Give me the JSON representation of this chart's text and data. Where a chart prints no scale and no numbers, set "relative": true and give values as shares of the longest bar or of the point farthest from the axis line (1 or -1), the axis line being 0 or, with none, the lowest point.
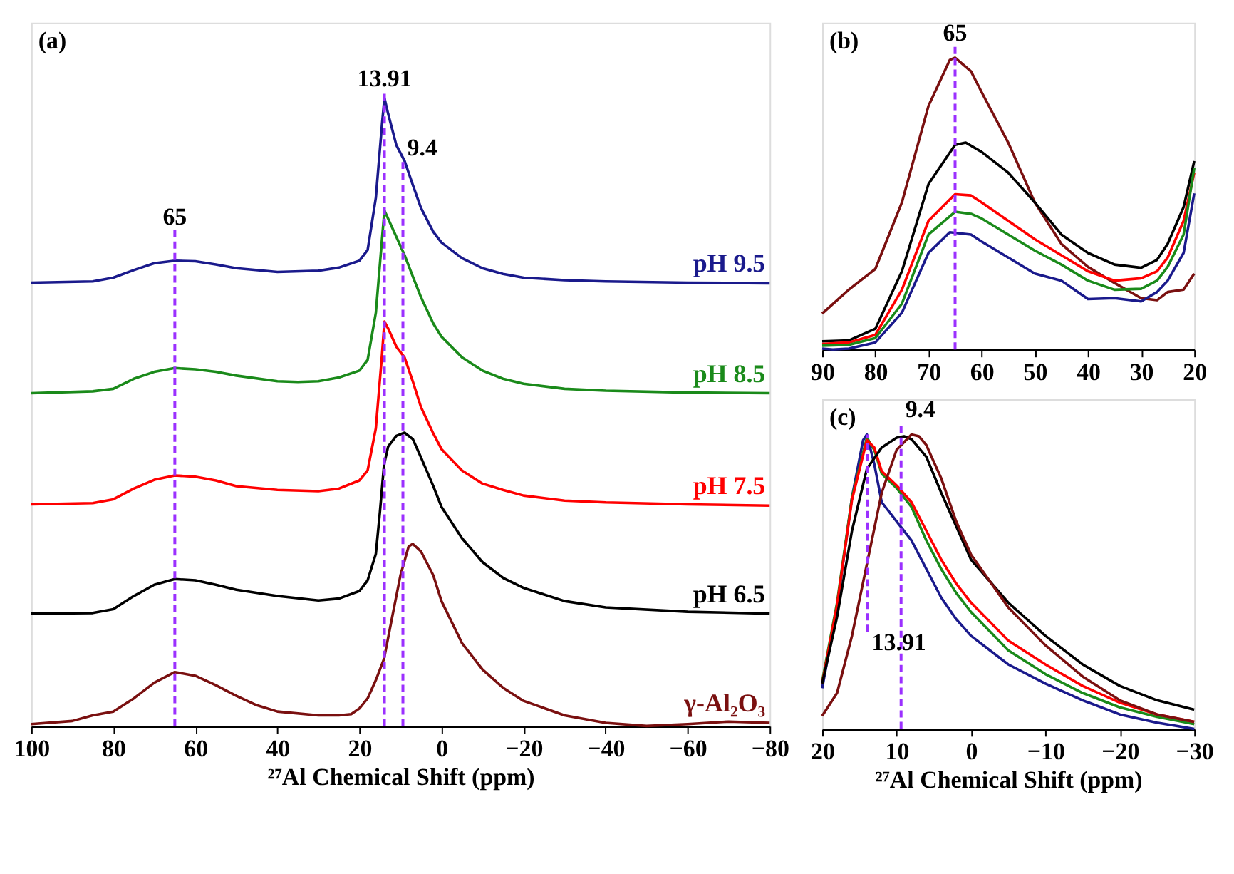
{
  "chart_data": [
    {
      "type": "line",
      "relative": true,
      "xlabel": "²⁷Al Chemical Shift (ppm)",
      "xlim": [
        100,
        -80
      ],
      "xticks": [
        100,
        80,
        60,
        40,
        20,
        0,
        -20,
        -40,
        -60,
        -80
      ],
      "line_style": "solid",
      "annotations": [
        "(a)",
        {
          "text": "65",
          "x": 65,
          "y": 0.79
        },
        {
          "text": "13.91",
          "x": 13.91,
          "y": 1.01
        },
        {
          "text": "9.4",
          "x": 9.4,
          "y": 0.9
        }
      ],
      "ref_lines": [
        {
          "axis": "x",
          "value": 65,
          "color": "#9b30ff",
          "line_style": "dashed"
        },
        {
          "axis": "x",
          "value": 13.91,
          "color": "#9b30ff",
          "line_style": "dashed"
        },
        {
          "axis": "x",
          "value": 9.4,
          "color": "#9b30ff",
          "line_style": "dashed"
        }
      ],
      "series": [
        {
          "name": "pH 9.5",
          "color": "#1a1a8c",
          "x": [
            100,
            85,
            80,
            75,
            70,
            65,
            60,
            55,
            50,
            40,
            30,
            25,
            20,
            18,
            16,
            14.5,
            13.9,
            13,
            11,
            9,
            7,
            5,
            2,
            0,
            -5,
            -10,
            -15,
            -20,
            -30,
            -40,
            -60,
            -80
          ],
          "values": [
            0.706,
            0.708,
            0.714,
            0.726,
            0.737,
            0.741,
            0.74,
            0.735,
            0.729,
            0.723,
            0.725,
            0.73,
            0.741,
            0.758,
            0.841,
            0.958,
            1,
            0.975,
            0.925,
            0.9,
            0.862,
            0.825,
            0.787,
            0.77,
            0.745,
            0.729,
            0.72,
            0.714,
            0.71,
            0.708,
            0.706,
            0.705
          ]
        },
        {
          "name": "pH 8.5",
          "color": "#1a8a1a",
          "x": [
            100,
            85,
            80,
            75,
            70,
            65,
            60,
            55,
            50,
            40,
            35,
            30,
            25,
            20,
            18,
            16,
            14.5,
            13.9,
            13,
            11,
            9,
            7,
            5,
            2,
            0,
            -5,
            -10,
            -15,
            -20,
            -30,
            -40,
            -60,
            -80
          ],
          "values": [
            0.53,
            0.533,
            0.537,
            0.553,
            0.564,
            0.57,
            0.568,
            0.564,
            0.558,
            0.549,
            0.548,
            0.549,
            0.555,
            0.566,
            0.583,
            0.658,
            0.775,
            0.821,
            0.808,
            0.779,
            0.75,
            0.716,
            0.683,
            0.641,
            0.62,
            0.587,
            0.566,
            0.553,
            0.545,
            0.537,
            0.534,
            0.531,
            0.53
          ]
        },
        {
          "name": "pH 7.5",
          "color": "#ff0000",
          "x": [
            100,
            85,
            80,
            75,
            70,
            65,
            60,
            55,
            50,
            40,
            30,
            25,
            20,
            18,
            16,
            14.5,
            13.9,
            13,
            11,
            9,
            7,
            5,
            2,
            0,
            -5,
            -10,
            -15,
            -20,
            -30,
            -40,
            -60,
            -80
          ],
          "values": [
            0.353,
            0.355,
            0.361,
            0.378,
            0.392,
            0.399,
            0.397,
            0.391,
            0.382,
            0.376,
            0.374,
            0.378,
            0.391,
            0.407,
            0.474,
            0.591,
            0.644,
            0.633,
            0.604,
            0.587,
            0.549,
            0.508,
            0.466,
            0.441,
            0.407,
            0.386,
            0.376,
            0.367,
            0.359,
            0.356,
            0.353,
            0.351
          ]
        },
        {
          "name": "pH 6.5",
          "color": "#000000",
          "x": [
            100,
            85,
            80,
            75,
            70,
            65,
            60,
            55,
            50,
            40,
            30,
            25,
            20,
            18,
            16,
            15,
            14,
            13,
            11,
            9,
            7,
            5,
            2,
            0,
            -5,
            -10,
            -15,
            -20,
            -30,
            -40,
            -60,
            -80
          ],
          "values": [
            0.179,
            0.18,
            0.186,
            0.207,
            0.225,
            0.234,
            0.232,
            0.225,
            0.217,
            0.207,
            0.2,
            0.203,
            0.215,
            0.232,
            0.274,
            0.341,
            0.416,
            0.445,
            0.462,
            0.467,
            0.457,
            0.428,
            0.382,
            0.349,
            0.299,
            0.261,
            0.236,
            0.22,
            0.199,
            0.189,
            0.182,
            0.179
          ]
        },
        {
          "name": "γ-Al₂O₃",
          "color": "#7a1010",
          "x": [
            100,
            90,
            85,
            80,
            75,
            70,
            65,
            60,
            55,
            50,
            45,
            40,
            30,
            25,
            22,
            20,
            18,
            16,
            14,
            12,
            10,
            8,
            7,
            5,
            2,
            0,
            -5,
            -10,
            -15,
            -20,
            -30,
            -40,
            -50,
            -60,
            -70,
            -80
          ],
          "values": [
            0.003,
            0.008,
            0.017,
            0.023,
            0.044,
            0.069,
            0.086,
            0.08,
            0.065,
            0.048,
            0.033,
            0.023,
            0.017,
            0.017,
            0.019,
            0.028,
            0.044,
            0.073,
            0.107,
            0.174,
            0.24,
            0.286,
            0.29,
            0.278,
            0.24,
            0.199,
            0.132,
            0.09,
            0.061,
            0.04,
            0.017,
            0.005,
            0,
            0.003,
            0.007,
            0.005
          ]
        }
      ]
    },
    {
      "type": "line",
      "relative": true,
      "xlim": [
        90,
        20
      ],
      "xticks": [
        90,
        80,
        70,
        60,
        50,
        40,
        30,
        20
      ],
      "line_style": "solid",
      "annotations": [
        "(b)",
        {
          "text": "65",
          "x": 65,
          "y": 1.04
        }
      ],
      "ref_lines": [
        {
          "axis": "x",
          "value": 65,
          "color": "#9b30ff",
          "line_style": "dashed"
        }
      ],
      "series": [
        {
          "color": "#7a1010",
          "x": [
            90,
            85,
            80,
            75,
            70,
            66,
            65,
            62,
            60,
            55,
            50,
            45,
            40,
            35,
            30,
            27,
            25,
            22,
            20
          ],
          "values": [
            0.123,
            0.205,
            0.276,
            0.504,
            0.835,
            0.992,
            1,
            0.953,
            0.882,
            0.709,
            0.504,
            0.362,
            0.283,
            0.228,
            0.176,
            0.169,
            0.197,
            0.205,
            0.26
          ]
        },
        {
          "color": "#000000",
          "x": [
            90,
            85,
            80,
            75,
            70,
            65,
            63,
            60,
            55,
            50,
            45,
            40,
            35,
            30,
            27,
            25,
            22,
            20
          ],
          "values": [
            0.028,
            0.031,
            0.071,
            0.268,
            0.567,
            0.701,
            0.709,
            0.677,
            0.606,
            0.504,
            0.394,
            0.331,
            0.291,
            0.28,
            0.307,
            0.362,
            0.488,
            0.646
          ]
        },
        {
          "color": "#ff0000",
          "x": [
            90,
            85,
            80,
            75,
            70,
            65,
            62,
            60,
            55,
            50,
            45,
            40,
            35,
            30,
            27,
            25,
            22,
            20
          ],
          "values": [
            0.019,
            0.024,
            0.05,
            0.205,
            0.441,
            0.532,
            0.528,
            0.504,
            0.441,
            0.378,
            0.323,
            0.268,
            0.236,
            0.244,
            0.268,
            0.315,
            0.441,
            0.606
          ]
        },
        {
          "color": "#1a8a1a",
          "x": [
            90,
            85,
            80,
            75,
            70,
            65,
            62,
            60,
            55,
            50,
            45,
            40,
            35,
            30,
            27,
            25,
            22,
            20
          ],
          "values": [
            0.013,
            0.016,
            0.039,
            0.157,
            0.394,
            0.472,
            0.465,
            0.449,
            0.394,
            0.339,
            0.291,
            0.236,
            0.205,
            0.208,
            0.236,
            0.283,
            0.394,
            0.622
          ]
        },
        {
          "color": "#1a1a8c",
          "x": [
            90,
            88,
            85,
            80,
            75,
            70,
            66,
            62,
            60,
            55,
            50,
            45,
            40,
            35,
            30,
            27,
            25,
            22,
            20
          ],
          "values": [
            0.003,
            0,
            0.003,
            0.024,
            0.126,
            0.331,
            0.402,
            0.394,
            0.37,
            0.315,
            0.26,
            0.236,
            0.173,
            0.176,
            0.165,
            0.197,
            0.236,
            0.331,
            0.535
          ]
        }
      ]
    },
    {
      "type": "line",
      "relative": true,
      "xlabel": "²⁷Al Chemical Shift (ppm)",
      "xlim": [
        20,
        -30
      ],
      "xticks": [
        20,
        10,
        0,
        -10,
        -20,
        -30
      ],
      "line_style": "solid",
      "annotations": [
        "(c)",
        {
          "text": "9.4",
          "x": 9.4,
          "y": 1.04
        },
        {
          "text": "13.91",
          "x": 13.91,
          "y": 0.33
        }
      ],
      "ref_lines": [
        {
          "axis": "x",
          "value": 13.91,
          "color": "#9b30ff",
          "line_style": "dashed"
        },
        {
          "axis": "x",
          "value": 9.4,
          "color": "#9b30ff",
          "line_style": "dashed"
        }
      ],
      "series": [
        {
          "color": "#1a1a8c",
          "x": [
            20,
            18,
            16,
            14.5,
            14,
            13,
            12,
            10,
            8,
            6,
            4,
            2,
            0,
            -5,
            -10,
            -15,
            -20,
            -25,
            -30
          ],
          "values": [
            0.138,
            0.413,
            0.786,
            0.981,
            1,
            0.9,
            0.77,
            0.705,
            0.64,
            0.543,
            0.446,
            0.373,
            0.316,
            0.219,
            0.154,
            0.097,
            0.049,
            0.021,
            0
          ]
        },
        {
          "color": "#1a8a1a",
          "x": [
            20,
            18,
            16,
            14,
            13,
            12,
            10,
            8,
            6,
            4,
            2,
            0,
            -5,
            -10,
            -15,
            -20,
            -25,
            -30
          ],
          "values": [
            0.162,
            0.429,
            0.786,
            0.989,
            0.948,
            0.867,
            0.818,
            0.754,
            0.64,
            0.543,
            0.462,
            0.397,
            0.267,
            0.186,
            0.122,
            0.073,
            0.041,
            0.016
          ]
        },
        {
          "color": "#ff0000",
          "x": [
            20,
            18,
            16,
            14,
            13,
            12,
            10,
            8,
            6,
            4,
            2,
            0,
            -5,
            -10,
            -15,
            -20,
            -25,
            -30
          ],
          "values": [
            0.154,
            0.421,
            0.778,
            0.981,
            0.956,
            0.875,
            0.827,
            0.77,
            0.673,
            0.575,
            0.494,
            0.429,
            0.3,
            0.219,
            0.146,
            0.089,
            0.049,
            0.024
          ]
        },
        {
          "color": "#000000",
          "x": [
            20,
            18,
            16,
            14,
            12,
            10,
            9,
            8,
            6,
            4,
            2,
            0,
            -5,
            -10,
            -15,
            -20,
            -25,
            -30
          ],
          "values": [
            0.154,
            0.381,
            0.673,
            0.883,
            0.956,
            0.989,
            0.994,
            0.984,
            0.924,
            0.802,
            0.689,
            0.575,
            0.429,
            0.316,
            0.219,
            0.146,
            0.097,
            0.065
          ]
        },
        {
          "color": "#7a1010",
          "x": [
            20,
            18,
            16,
            14,
            12,
            10,
            8,
            7,
            6,
            4,
            2,
            0,
            -5,
            -10,
            -15,
            -20,
            -25,
            -30
          ],
          "values": [
            0.044,
            0.122,
            0.316,
            0.559,
            0.802,
            0.948,
            1,
            0.994,
            0.964,
            0.851,
            0.705,
            0.592,
            0.413,
            0.284,
            0.178,
            0.097,
            0.049,
            0.024
          ]
        }
      ]
    }
  ]
}
